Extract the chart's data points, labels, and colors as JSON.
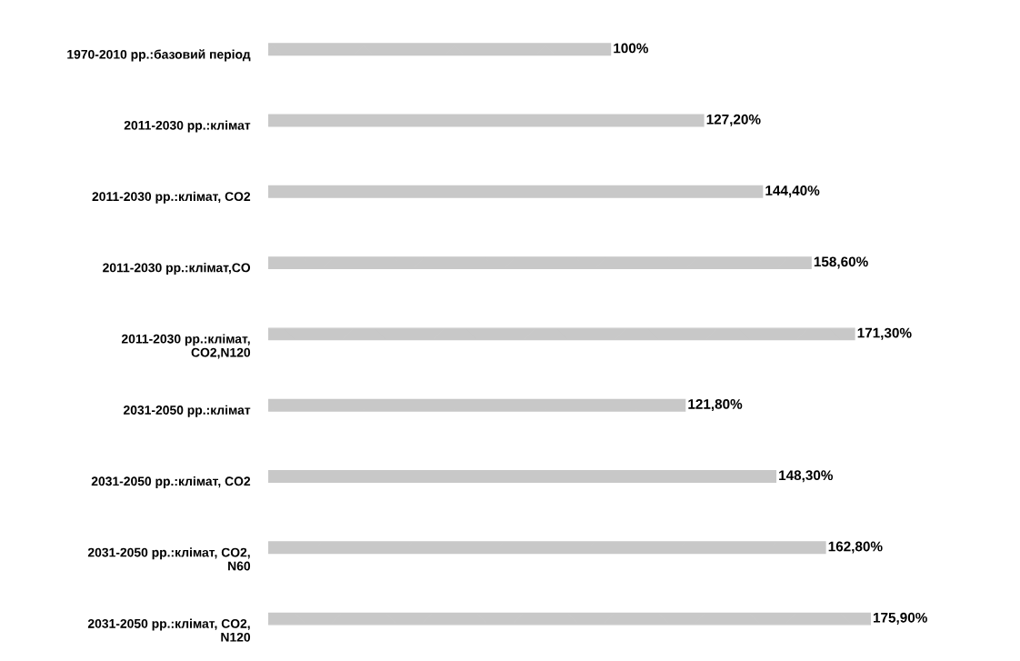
{
  "chart_data": {
    "type": "bar",
    "orientation": "horizontal",
    "categories": [
      "1970-2010 рр.:базовий період",
      "2011-2030 рр.:клімат",
      "2011-2030 рр.:клімат, CO2",
      "2011-2030 рр.:клімат,CO",
      "2011-2030 рр.:клімат,\nCO2,N120",
      "2031-2050 рр.:клімат",
      "2031-2050 рр.:клімат, CO2",
      "2031-2050 рр.:клімат, CO2,\nN60",
      "2031-2050 рр.:клімат, CO2,\nN120"
    ],
    "values": [
      100,
      127.2,
      144.4,
      158.6,
      171.3,
      121.8,
      148.3,
      162.8,
      175.9
    ],
    "value_labels": [
      "100%",
      "127,20%",
      "144,40%",
      "158,60%",
      "171,30%",
      "121,80%",
      "148,30%",
      "162,80%",
      "175,90%"
    ],
    "color": "#c8c8c8",
    "grid": false,
    "legend": false
  }
}
